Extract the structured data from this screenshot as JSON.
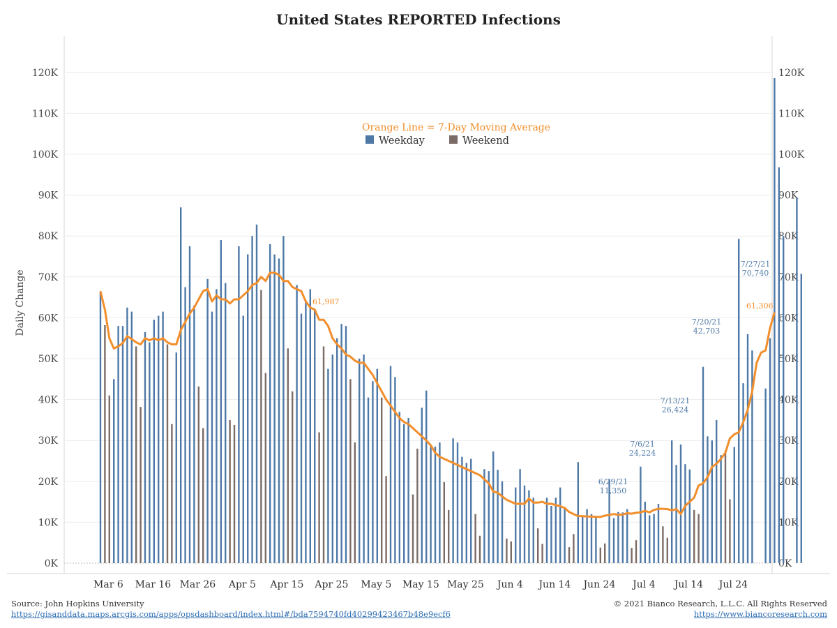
{
  "chart_data": {
    "type": "bar",
    "title": "United States REPORTED Infections",
    "ylabel": "Daily Change",
    "xlabel": "",
    "ylim": [
      0,
      128000
    ],
    "yticks": [
      0,
      10000,
      20000,
      30000,
      40000,
      50000,
      60000,
      70000,
      80000,
      90000,
      100000,
      110000,
      120000
    ],
    "ytick_labels": [
      "0K",
      "10K",
      "20K",
      "30K",
      "40K",
      "50K",
      "60K",
      "70K",
      "80K",
      "90K",
      "100K",
      "110K",
      "120K"
    ],
    "x_start_date": "2021-03-05",
    "x_end_date": "2021-07-27",
    "xticks": [
      1,
      11,
      21,
      31,
      41,
      51,
      61,
      71,
      81,
      91,
      101,
      111,
      121,
      131,
      141
    ],
    "xtick_labels": [
      "Mar 6",
      "Mar 16",
      "Mar 26",
      "Apr 5",
      "Apr 15",
      "Apr 25",
      "May 5",
      "May 15",
      "May 25",
      "Jun 4",
      "Jun 14",
      "Jun 24",
      "Jul 4",
      "Jul 14",
      "Jul 24"
    ],
    "grid": true,
    "legend_position": "top-center",
    "legend": {
      "note": "Orange Line = 7-Day Moving Average",
      "items": [
        {
          "name": "Weekday",
          "color": "#4e79a7"
        },
        {
          "name": "Weekend",
          "color": "#7b6b66"
        }
      ]
    },
    "colors": {
      "weekday": "#4e79a7",
      "weekend": "#7b6b66",
      "moving_average": "#f28e2b"
    },
    "series": [
      {
        "name": "Weekday",
        "values": [
          66500,
          null,
          null,
          45000,
          58000,
          58000,
          62500,
          61500,
          null,
          null,
          56500,
          54000,
          59500,
          60500,
          61500,
          null,
          null,
          51500,
          87000,
          67500,
          77500,
          63000,
          null,
          null,
          69500,
          61500,
          67000,
          79000,
          68500,
          null,
          null,
          77500,
          60500,
          75500,
          80000,
          82800,
          null,
          null,
          78000,
          75500,
          74500,
          80000,
          null,
          null,
          68000,
          61000,
          64000,
          67000,
          62000,
          null,
          null,
          47500,
          51000,
          55000,
          58500,
          58000,
          null,
          null,
          50000,
          51000,
          40500,
          44500,
          47500,
          null,
          null,
          48200,
          45500,
          37000,
          34000,
          35500,
          null,
          null,
          38000,
          42200,
          29000,
          28500,
          29500,
          null,
          null,
          30500,
          29500,
          26000,
          24500,
          25500,
          null,
          null,
          23000,
          22500,
          27300,
          22800,
          20000,
          null,
          null,
          18500,
          23000,
          19000,
          17800,
          16000,
          null,
          null,
          16000,
          14000,
          16000,
          18500,
          13500,
          null,
          null,
          24700,
          11500,
          13200,
          12000,
          11200,
          null,
          null,
          20500,
          11000,
          12500,
          12400,
          13200,
          null,
          null,
          23600,
          15000,
          11700,
          12000,
          14500,
          null,
          null,
          30000,
          24000,
          29000,
          24200,
          22900,
          null,
          null,
          48000,
          31000,
          30000,
          35000,
          26400,
          null,
          null,
          28400,
          79300,
          44000,
          56000,
          52000,
          null,
          null,
          42700,
          55000,
          118600,
          96800,
          80000,
          null,
          null,
          89300,
          70740
        ]
      },
      {
        "name": "Weekend",
        "values": [
          null,
          58200,
          41000,
          null,
          null,
          null,
          null,
          null,
          53000,
          38200,
          null,
          null,
          null,
          null,
          null,
          53500,
          34000,
          null,
          null,
          null,
          null,
          null,
          43200,
          33000,
          null,
          null,
          null,
          null,
          null,
          35000,
          33800,
          null,
          null,
          null,
          null,
          null,
          66800,
          46500,
          null,
          null,
          null,
          null,
          52500,
          42000,
          null,
          null,
          null,
          null,
          null,
          32000,
          53000,
          null,
          null,
          null,
          null,
          null,
          45000,
          29500,
          null,
          null,
          null,
          null,
          null,
          40500,
          21300,
          null,
          null,
          null,
          null,
          null,
          16800,
          28000,
          null,
          null,
          null,
          null,
          null,
          19800,
          13000,
          null,
          null,
          null,
          null,
          null,
          12000,
          6700,
          null,
          null,
          null,
          null,
          null,
          6000,
          5300,
          null,
          null,
          null,
          null,
          null,
          8500,
          4700,
          null,
          null,
          null,
          null,
          null,
          3900,
          7100,
          null,
          null,
          null,
          null,
          null,
          3800,
          4800,
          null,
          null,
          null,
          null,
          null,
          3700,
          5600,
          null,
          null,
          null,
          null,
          null,
          9000,
          6200,
          null,
          null,
          null,
          null,
          null,
          13000,
          12000,
          null,
          null,
          null,
          null,
          null,
          27500,
          15600,
          null,
          null
        ]
      },
      {
        "name": "7-Day Moving Average",
        "values": [
          66500,
          62000,
          55000,
          52500,
          53000,
          53800,
          55500,
          54800,
          54000,
          53500,
          55000,
          54500,
          55000,
          54500,
          55000,
          54000,
          53500,
          53500,
          57000,
          59000,
          61000,
          62500,
          64500,
          66500,
          67000,
          64000,
          65500,
          64500,
          64500,
          63500,
          64500,
          64500,
          65500,
          66500,
          68000,
          68500,
          70000,
          69000,
          71000,
          71000,
          70500,
          69000,
          69000,
          67500,
          67000,
          66500,
          64000,
          62500,
          62000,
          59500,
          59500,
          58000,
          55000,
          53500,
          52500,
          51000,
          50500,
          49500,
          49000,
          49000,
          47500,
          46000,
          44000,
          42000,
          40000,
          38500,
          37000,
          35500,
          34500,
          34000,
          33000,
          32000,
          31000,
          30000,
          28800,
          27000,
          26000,
          25500,
          25000,
          24500,
          24000,
          23500,
          23000,
          22500,
          22000,
          21500,
          20500,
          19500,
          17500,
          17200,
          16300,
          15500,
          15000,
          14500,
          14500,
          14500,
          15800,
          14800,
          14800,
          15000,
          14500,
          14500,
          14200,
          13900,
          13500,
          12500,
          12000,
          11500,
          11500,
          11400,
          11400,
          11300,
          11300,
          11600,
          11800,
          12000,
          11800,
          11900,
          12200,
          12100,
          12300,
          12400,
          12800,
          12400,
          13000,
          13300,
          13300,
          13200,
          12900,
          13200,
          12000,
          14000,
          15000,
          16000,
          19000,
          19500,
          21000,
          23500,
          24300,
          25500,
          27000,
          30500,
          31500,
          32000,
          34500,
          37500,
          42000,
          49000,
          51500,
          52000,
          57500,
          61306
        ]
      }
    ],
    "annotations": [
      {
        "date": "6/29/21",
        "value_label": "11,350",
        "x": 117,
        "y": 11350,
        "series": "Weekday",
        "color": "#4e79a7"
      },
      {
        "date": "7/6/21",
        "value_label": "24,224",
        "x": 124,
        "y": 24224,
        "series": "Weekday",
        "color": "#4e79a7"
      },
      {
        "date": "7/13/21",
        "value_label": "26,424",
        "x": 131,
        "y": 26424,
        "series": "Weekday",
        "color": "#4e79a7"
      },
      {
        "date": "7/20/21",
        "value_label": "42,703",
        "x": 138,
        "y": 42703,
        "series": "Weekday",
        "color": "#4e79a7"
      },
      {
        "date": "7/27/21",
        "value_label": "70,740",
        "x": 145,
        "y": 70740,
        "series": "Weekday",
        "color": "#4e79a7"
      },
      {
        "date": "",
        "value_label": "61,987",
        "x": 47,
        "y": 61987,
        "series": "7-Day Moving Average",
        "color": "#f28e2b"
      },
      {
        "date": "",
        "value_label": "61,306",
        "x": 145,
        "y": 61306,
        "series": "7-Day Moving Average",
        "color": "#f28e2b"
      }
    ]
  },
  "footer": {
    "source_label": "Source: John Hopkins University",
    "source_url": "https://gisanddata.maps.arcgis.com/apps/opsdashboard/index.html#/bda7594740fd40299423467b48e9ecf6",
    "copyright": "© 2021 Bianco Research, L.L.C. All Rights Reserved",
    "website": "https://www.biancoresearch.com"
  }
}
